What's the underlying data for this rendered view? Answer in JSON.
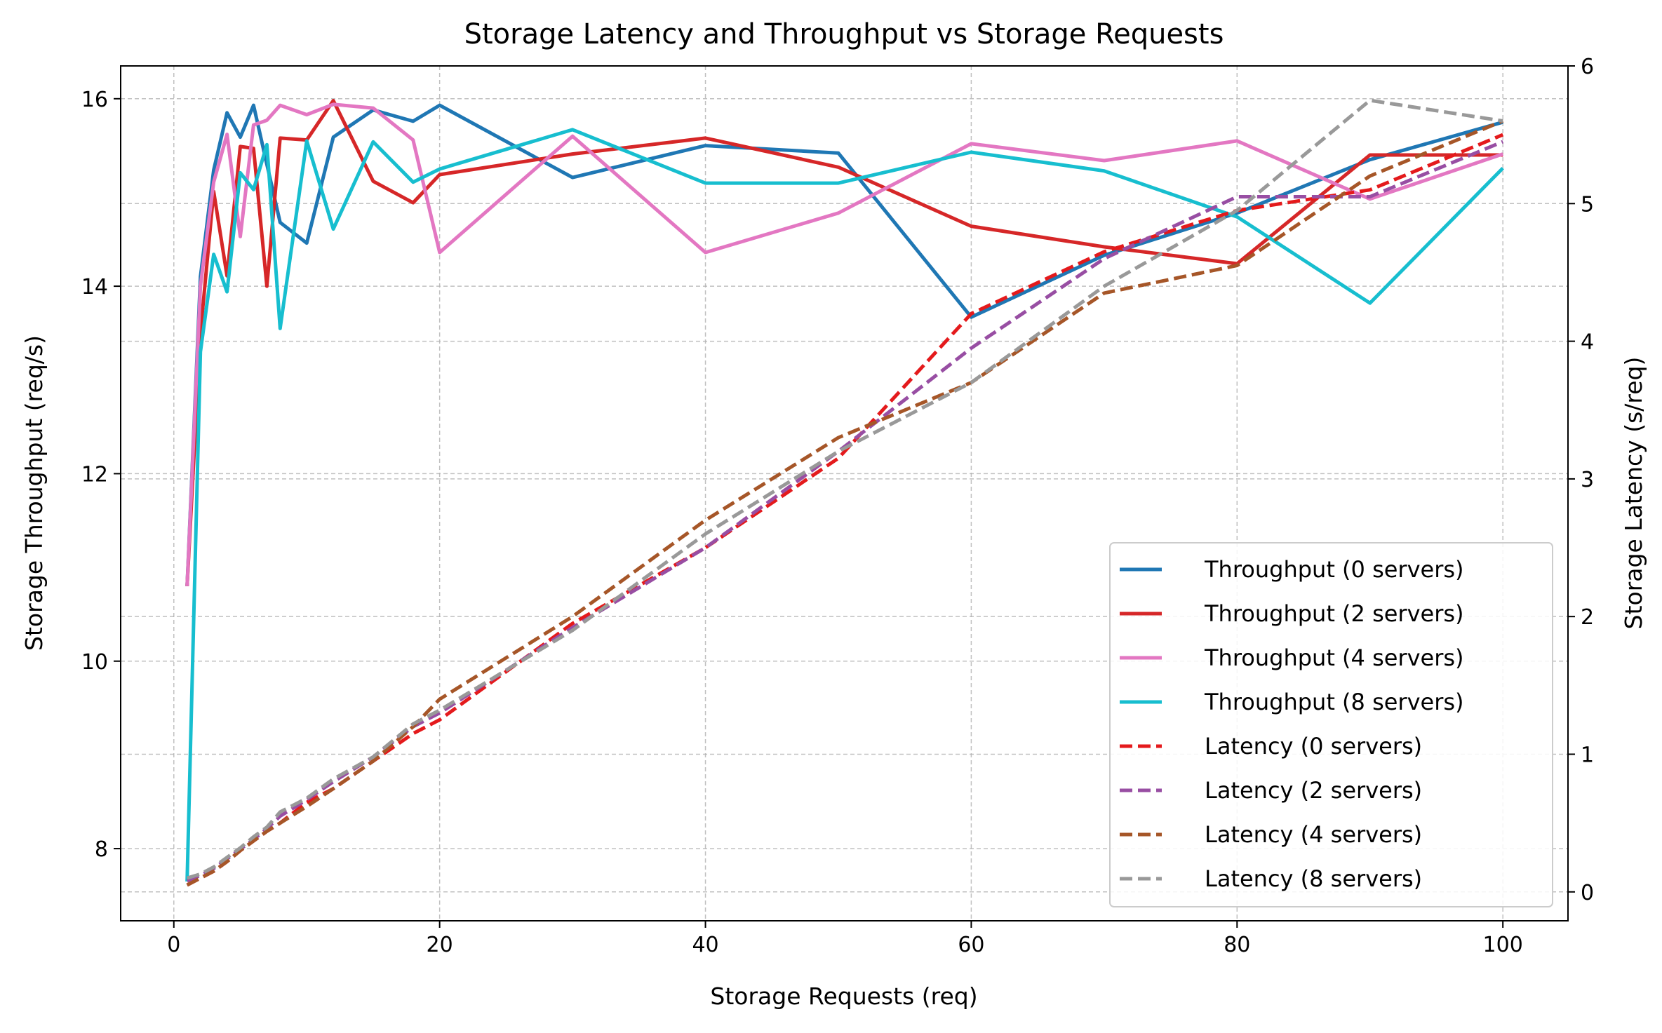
{
  "chart_data": {
    "type": "line",
    "title": "Storage Latency and Throughput vs Storage Requests",
    "xlabel": "Storage Requests (req)",
    "ylabel": "Storage Throughput (req/s)",
    "y2label": "Storage Latency (s/req)",
    "xlim": [
      -4,
      104.9
    ],
    "ylim": [
      7.23,
      16.35
    ],
    "y2lim": [
      -0.21,
      6.0
    ],
    "xticks": [
      0,
      20,
      40,
      60,
      80,
      100
    ],
    "yticks": [
      8,
      10,
      12,
      14,
      16
    ],
    "y2ticks": [
      0,
      1,
      2,
      3,
      4,
      5,
      6
    ],
    "grid": true,
    "legend_position": "bottom-right",
    "x": [
      1,
      2,
      3,
      4,
      5,
      6,
      7,
      8,
      10,
      12,
      15,
      18,
      20,
      30,
      40,
      50,
      60,
      70,
      80,
      90,
      100
    ],
    "series": [
      {
        "name": "Throughput (0 servers)",
        "axis": "left",
        "style": "solid",
        "color": "#1f77b4",
        "values": [
          10.8,
          14.1,
          15.24,
          15.85,
          15.59,
          15.93,
          15.3,
          14.68,
          14.46,
          15.59,
          15.88,
          15.76,
          15.93,
          15.16,
          15.5,
          15.42,
          13.67,
          14.33,
          14.78,
          15.35,
          15.75
        ]
      },
      {
        "name": "Throughput (2 servers)",
        "axis": "left",
        "style": "solid",
        "color": "#d62728",
        "values": [
          10.8,
          13.5,
          15.01,
          14.11,
          15.49,
          15.47,
          14.0,
          15.58,
          15.56,
          15.98,
          15.12,
          14.89,
          15.19,
          15.41,
          15.58,
          15.27,
          14.64,
          14.42,
          14.24,
          15.4,
          15.4
        ]
      },
      {
        "name": "Throughput (4 servers)",
        "axis": "left",
        "style": "solid",
        "color": "#e377c2",
        "values": [
          10.8,
          14.0,
          15.11,
          15.62,
          14.53,
          15.72,
          15.77,
          15.93,
          15.83,
          15.94,
          15.9,
          15.56,
          14.36,
          15.6,
          14.36,
          14.78,
          15.52,
          15.34,
          15.55,
          14.93,
          15.41
        ]
      },
      {
        "name": "Throughput (8 servers)",
        "axis": "left",
        "style": "solid",
        "color": "#17becf",
        "values": [
          7.65,
          13.3,
          14.34,
          13.94,
          15.21,
          15.03,
          15.51,
          13.55,
          15.55,
          14.61,
          15.54,
          15.11,
          15.25,
          15.67,
          15.1,
          15.1,
          15.43,
          15.23,
          14.74,
          13.82,
          15.26
        ]
      },
      {
        "name": "Latency (0 servers)",
        "axis": "right",
        "style": "dashed",
        "color": "#e41a1c",
        "values": [
          0.05,
          0.1,
          0.15,
          0.22,
          0.3,
          0.37,
          0.44,
          0.5,
          0.65,
          0.75,
          0.95,
          1.15,
          1.25,
          1.95,
          2.5,
          3.15,
          4.2,
          4.65,
          4.95,
          5.1,
          5.5
        ]
      },
      {
        "name": "Latency (2 servers)",
        "axis": "right",
        "style": "dashed",
        "color": "#984ea3",
        "values": [
          0.08,
          0.12,
          0.17,
          0.24,
          0.31,
          0.38,
          0.46,
          0.55,
          0.67,
          0.8,
          0.98,
          1.2,
          1.3,
          1.92,
          2.5,
          3.2,
          3.95,
          4.6,
          5.05,
          5.05,
          5.45
        ]
      },
      {
        "name": "Latency (4 servers)",
        "axis": "right",
        "style": "dashed",
        "color": "#a65628",
        "values": [
          0.05,
          0.1,
          0.15,
          0.22,
          0.3,
          0.37,
          0.44,
          0.5,
          0.62,
          0.75,
          0.95,
          1.2,
          1.4,
          2.0,
          2.7,
          3.3,
          3.7,
          4.35,
          4.55,
          5.2,
          5.6
        ]
      },
      {
        "name": "Latency (8 servers)",
        "axis": "right",
        "style": "dashed",
        "color": "#999999",
        "values": [
          0.1,
          0.13,
          0.18,
          0.25,
          0.32,
          0.4,
          0.47,
          0.58,
          0.68,
          0.82,
          0.98,
          1.22,
          1.32,
          1.9,
          2.6,
          3.2,
          3.7,
          4.4,
          4.95,
          5.75,
          5.6
        ]
      }
    ]
  }
}
